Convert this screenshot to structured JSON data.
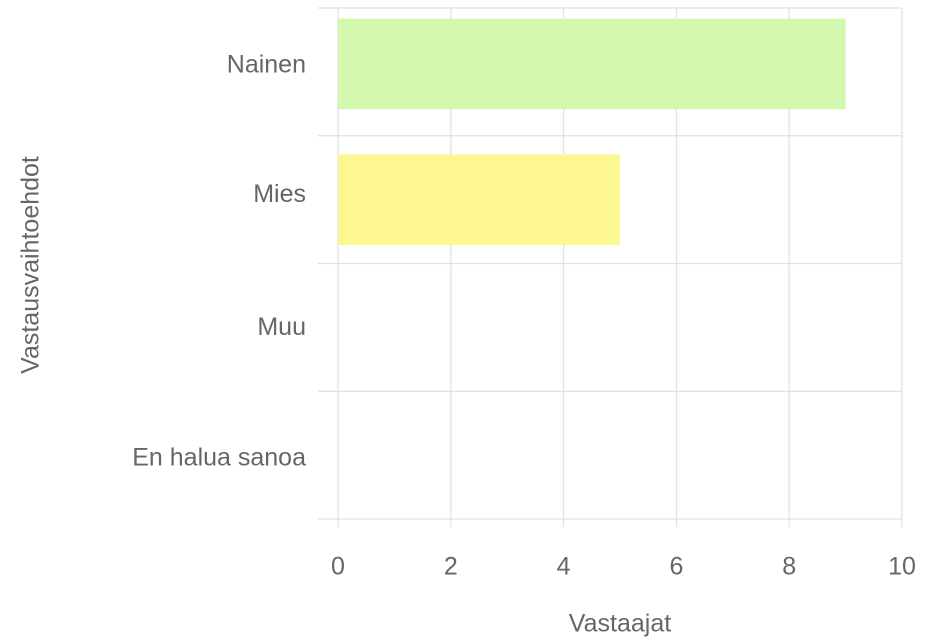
{
  "chart_data": {
    "type": "hbar",
    "categories": [
      "Nainen",
      "Mies",
      "Muu",
      "En halua sanoa"
    ],
    "values": [
      9,
      5,
      0,
      0
    ],
    "colors": [
      "#d4f8ae",
      "#fdf791"
    ],
    "xlabel": "Vastaajat",
    "ylabel": "Vastausvaihtoehdot",
    "xlim": [
      0,
      10
    ],
    "xticks": [
      0,
      2,
      4,
      6,
      8,
      10
    ],
    "grid": true
  }
}
